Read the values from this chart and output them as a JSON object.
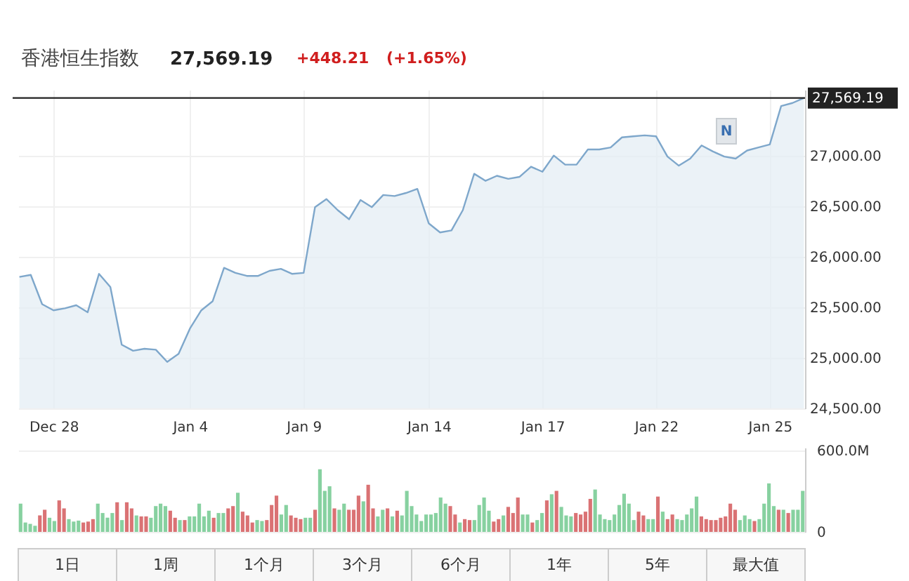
{
  "chart_data": [
    {
      "type": "area",
      "title": "香港恒生指数",
      "annotations": [
        "27,569.19",
        "+448.21",
        "(+1.65%)",
        {
          "text": "N",
          "y": 27240
        }
      ],
      "categories": [
        null,
        null,
        null,
        "Dec 28",
        null,
        null,
        null,
        null,
        null,
        null,
        null,
        null,
        null,
        null,
        null,
        "Jan 4",
        null,
        null,
        null,
        null,
        null,
        null,
        null,
        null,
        null,
        "Jan 9",
        null,
        null,
        null,
        null,
        null,
        null,
        null,
        null,
        null,
        null,
        "Jan 14",
        null,
        null,
        null,
        null,
        null,
        null,
        null,
        null,
        null,
        "Jan 17",
        null,
        null,
        null,
        null,
        null,
        null,
        null,
        null,
        null,
        "Jan 22",
        null,
        null,
        null,
        null,
        null,
        null,
        null,
        null,
        null,
        "Jan 25",
        null,
        null,
        null
      ],
      "values": [
        25800,
        25820,
        25530,
        25470,
        25490,
        25520,
        25450,
        25830,
        25700,
        25130,
        25070,
        25090,
        25080,
        24960,
        25040,
        25290,
        25470,
        25560,
        25890,
        25840,
        25810,
        25810,
        25860,
        25880,
        25830,
        25840,
        26490,
        26570,
        26460,
        26370,
        26560,
        26490,
        26610,
        26600,
        26630,
        26670,
        26330,
        26240,
        26260,
        26460,
        26820,
        26750,
        26800,
        26770,
        26790,
        26890,
        26840,
        27000,
        26910,
        26910,
        27060,
        27060,
        27080,
        27180,
        27190,
        27200,
        27190,
        26990,
        26900,
        26970,
        27100,
        27040,
        26990,
        26970,
        27050,
        27080,
        27110,
        27490,
        27520,
        27570
      ],
      "color": "#7ea7cb",
      "ylim": [
        24500,
        27650
      ],
      "yticks": [
        {
          "value": 24500,
          "label": "24,500.00"
        },
        {
          "value": 25000,
          "label": "25,000.00"
        },
        {
          "value": 25500,
          "label": "25,500.00"
        },
        {
          "value": 26000,
          "label": "26,000.00"
        },
        {
          "value": 26500,
          "label": "26,500.00"
        },
        {
          "value": 27000,
          "label": "27,000.00"
        }
      ],
      "ref_lines": [
        {
          "axis": "y",
          "value": 27569.19,
          "label": "27,569.19",
          "color": "#222222"
        }
      ],
      "grid": true
    },
    {
      "type": "bar",
      "categories": [
        null,
        null,
        null,
        null,
        null,
        null,
        null,
        null,
        null,
        null,
        null,
        null,
        null,
        null,
        null,
        null,
        null,
        null,
        null,
        null,
        null,
        null,
        null,
        null,
        null,
        null,
        null,
        null,
        null,
        null,
        null,
        null,
        null,
        null,
        null,
        null,
        null,
        null,
        null,
        null,
        null,
        null,
        null,
        null,
        null,
        null,
        null,
        null,
        null,
        null,
        null,
        null,
        null,
        null,
        null,
        null,
        null,
        null,
        null,
        null,
        null,
        null,
        null,
        null,
        null,
        null,
        null,
        null,
        null,
        null,
        null,
        null,
        null,
        null,
        null,
        null,
        null,
        null,
        null,
        null,
        null,
        null,
        null,
        null,
        null,
        null,
        null,
        null,
        null,
        null,
        null,
        null,
        null,
        null,
        null,
        null,
        null,
        null,
        null,
        null,
        null,
        null,
        null,
        null,
        null,
        null,
        null,
        null,
        null,
        null,
        null,
        null,
        null,
        null,
        null,
        null,
        null,
        null,
        null,
        null,
        null,
        null,
        null,
        null,
        null,
        null,
        null,
        null,
        null,
        null,
        null,
        null,
        null,
        null,
        null,
        null,
        null,
        null,
        null,
        null,
        null,
        null,
        null,
        null,
        null,
        null,
        null,
        null,
        null,
        null,
        null,
        null,
        null,
        null,
        null,
        null,
        null,
        null,
        null,
        null,
        null,
        null,
        null
      ],
      "values": [
        208,
        69,
        59,
        45,
        121,
        163,
        104,
        80,
        232,
        173,
        94,
        76,
        83,
        69,
        76,
        94,
        208,
        139,
        104,
        139,
        218,
        87,
        218,
        173,
        121,
        114,
        114,
        104,
        190,
        208,
        190,
        156,
        104,
        87,
        87,
        114,
        114,
        208,
        114,
        156,
        104,
        139,
        139,
        173,
        190,
        288,
        149,
        121,
        69,
        87,
        80,
        87,
        198,
        267,
        128,
        198,
        121,
        104,
        94,
        104,
        104,
        163,
        461,
        302,
        336,
        173,
        163,
        208,
        163,
        163,
        267,
        225,
        347,
        173,
        114,
        163,
        173,
        114,
        156,
        121,
        302,
        190,
        128,
        80,
        128,
        128,
        139,
        253,
        208,
        190,
        128,
        69,
        94,
        87,
        87,
        198,
        253,
        156,
        76,
        94,
        121,
        184,
        139,
        253,
        128,
        128,
        69,
        87,
        139,
        232,
        277,
        302,
        184,
        121,
        114,
        139,
        128,
        149,
        243,
        312,
        128,
        94,
        87,
        128,
        198,
        281,
        208,
        87,
        149,
        121,
        94,
        94,
        260,
        149,
        94,
        128,
        94,
        87,
        128,
        173,
        260,
        114,
        94,
        87,
        87,
        104,
        114,
        208,
        163,
        87,
        121,
        94,
        80,
        94,
        208,
        357,
        190,
        163,
        163,
        139,
        163,
        163,
        302
      ],
      "colors": [
        "#72c98f",
        "#72c98f",
        "#72c98f",
        "#72c98f",
        "#d4595c",
        "#d4595c",
        "#72c98f",
        "#72c98f",
        "#d4595c",
        "#d4595c",
        "#72c98f",
        "#72c98f",
        "#72c98f",
        "#d4595c",
        "#d4595c",
        "#d4595c",
        "#72c98f",
        "#72c98f",
        "#72c98f",
        "#72c98f",
        "#d4595c",
        "#72c98f",
        "#d4595c",
        "#d4595c",
        "#72c98f",
        "#d4595c",
        "#d4595c",
        "#72c98f",
        "#72c98f",
        "#72c98f",
        "#72c98f",
        "#d4595c",
        "#d4595c",
        "#72c98f",
        "#d4595c",
        "#72c98f",
        "#72c98f",
        "#72c98f",
        "#72c98f",
        "#72c98f",
        "#d4595c",
        "#72c98f",
        "#72c98f",
        "#d4595c",
        "#d4595c",
        "#72c98f",
        "#d4595c",
        "#d4595c",
        "#d4595c",
        "#72c98f",
        "#72c98f",
        "#d4595c",
        "#d4595c",
        "#d4595c",
        "#72c98f",
        "#72c98f",
        "#d4595c",
        "#d4595c",
        "#d4595c",
        "#72c98f",
        "#72c98f",
        "#d4595c",
        "#72c98f",
        "#72c98f",
        "#72c98f",
        "#d4595c",
        "#72c98f",
        "#72c98f",
        "#d4595c",
        "#d4595c",
        "#d4595c",
        "#72c98f",
        "#d4595c",
        "#d4595c",
        "#72c98f",
        "#72c98f",
        "#d4595c",
        "#72c98f",
        "#d4595c",
        "#72c98f",
        "#72c98f",
        "#72c98f",
        "#72c98f",
        "#72c98f",
        "#72c98f",
        "#72c98f",
        "#72c98f",
        "#72c98f",
        "#72c98f",
        "#d4595c",
        "#d4595c",
        "#72c98f",
        "#d4595c",
        "#d4595c",
        "#72c98f",
        "#72c98f",
        "#72c98f",
        "#72c98f",
        "#d4595c",
        "#d4595c",
        "#72c98f",
        "#d4595c",
        "#d4595c",
        "#d4595c",
        "#72c98f",
        "#72c98f",
        "#d4595c",
        "#72c98f",
        "#72c98f",
        "#d4595c",
        "#72c98f",
        "#d4595c",
        "#72c98f",
        "#72c98f",
        "#72c98f",
        "#d4595c",
        "#d4595c",
        "#d4595c",
        "#d4595c",
        "#72c98f",
        "#72c98f",
        "#72c98f",
        "#72c98f",
        "#72c98f",
        "#72c98f",
        "#72c98f",
        "#72c98f",
        "#72c98f",
        "#d4595c",
        "#d4595c",
        "#72c98f",
        "#72c98f",
        "#d4595c",
        "#72c98f",
        "#d4595c",
        "#d4595c",
        "#72c98f",
        "#72c98f",
        "#72c98f",
        "#72c98f",
        "#72c98f",
        "#d4595c",
        "#d4595c",
        "#d4595c",
        "#d4595c",
        "#d4595c",
        "#d4595c",
        "#d4595c",
        "#d4595c",
        "#72c98f",
        "#72c98f",
        "#72c98f",
        "#d4595c",
        "#72c98f",
        "#72c98f",
        "#72c98f",
        "#72c98f",
        "#d4595c",
        "#72c98f",
        "#d4595c",
        "#72c98f",
        "#72c98f",
        "#72c98f"
      ],
      "ylim": [
        0,
        620
      ],
      "yticks": [
        0,
        {
          "value": 600,
          "label": "600.0M"
        }
      ],
      "tick_labels": "y",
      "grid": "y"
    },
    {
      "type": "other",
      "annotations": [
        "1日",
        "1周",
        "1个月",
        "3个月",
        "6个月",
        "1年",
        "5年",
        "最大值"
      ]
    }
  ]
}
